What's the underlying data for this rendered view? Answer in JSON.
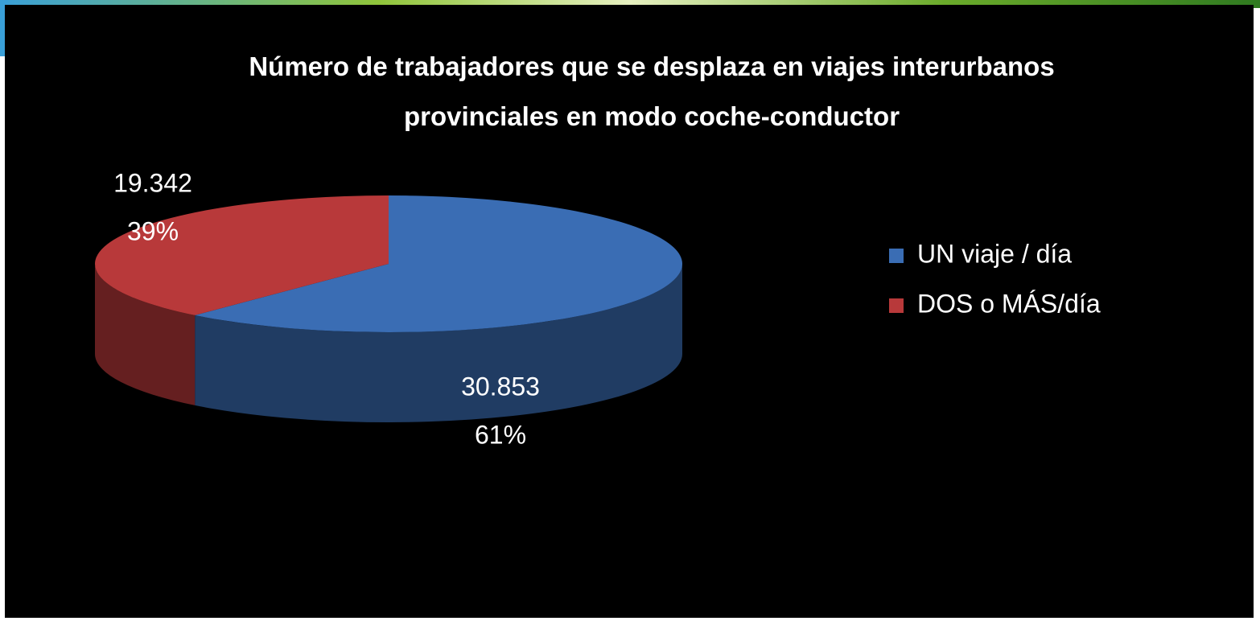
{
  "chart_data": {
    "type": "pie",
    "title": "Número de trabajadores que se desplaza en viajes interurbanos provinciales en modo coche-conductor",
    "categories": [
      "UN viaje / día",
      "DOS o MÁS/día"
    ],
    "values": [
      30853,
      19342
    ],
    "value_labels": [
      "30.853",
      "19.342"
    ],
    "percentages": [
      61,
      39
    ],
    "percentage_labels": [
      "61%",
      "39%"
    ],
    "colors": [
      "#3a6db4",
      "#b8393a"
    ],
    "legend": "right",
    "start_angle": "top",
    "direction": "clockwise"
  }
}
